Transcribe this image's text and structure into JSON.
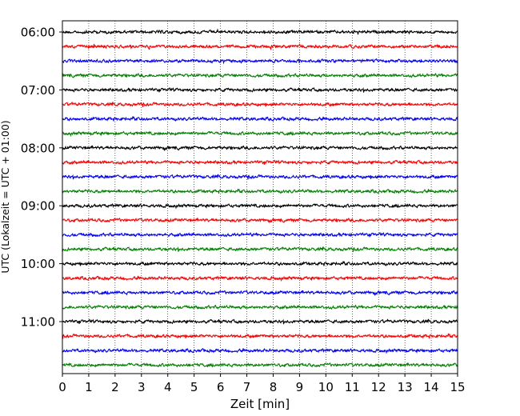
{
  "chart_data": {
    "type": "line",
    "title": "",
    "xlabel": "Zeit  [min]",
    "ylabel": "UTC (Lokalzeit = UTC + 01:00)",
    "xlim": [
      0,
      15
    ],
    "x_ticks": [
      "0",
      "1",
      "2",
      "3",
      "4",
      "5",
      "6",
      "7",
      "8",
      "9",
      "10",
      "11",
      "12",
      "13",
      "14",
      "15"
    ],
    "y_ticks": [
      "06:00",
      "07:00",
      "08:00",
      "09:00",
      "10:00",
      "11:00"
    ],
    "grid": "vertical dotted lines at each minute",
    "trace_interval_minutes": 15,
    "trace_start_times": [
      "06:00",
      "06:15",
      "06:30",
      "06:45",
      "07:00",
      "07:15",
      "07:30",
      "07:45",
      "08:00",
      "08:15",
      "08:30",
      "08:45",
      "09:00",
      "09:15",
      "09:30",
      "09:45",
      "10:00",
      "10:15",
      "10:30",
      "10:45",
      "11:00",
      "11:15",
      "11:30",
      "11:45"
    ],
    "trace_colors": [
      "#000000",
      "#ff0000",
      "#0000ff",
      "#008000"
    ]
  }
}
